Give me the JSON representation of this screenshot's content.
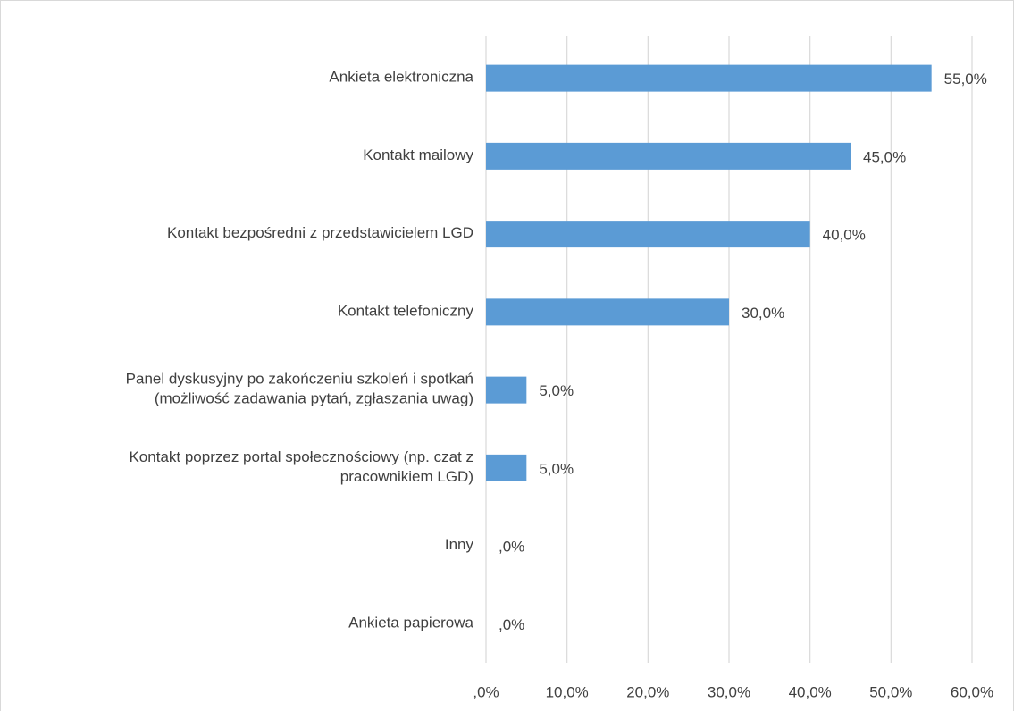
{
  "chart_data": {
    "type": "bar",
    "orientation": "horizontal",
    "categories": [
      "Ankieta elektroniczna",
      "Kontakt mailowy",
      "Kontakt bezpośredni z przedstawicielem LGD",
      "Kontakt telefoniczny",
      "Panel dyskusyjny po zakończeniu szkoleń i spotkań\n(możliwość zadawania pytań, zgłaszania uwag)",
      "Kontakt poprzez portal społecznościowy (np. czat z\npracownikiem LGD)",
      "Inny",
      "Ankieta papierowa"
    ],
    "values": [
      55,
      45,
      40,
      30,
      5,
      5,
      0,
      0
    ],
    "value_labels": [
      "55,0%",
      "45,0%",
      "40,0%",
      "30,0%",
      "5,0%",
      "5,0%",
      ",0%",
      ",0%"
    ],
    "color": "#5b9bd5",
    "xlim": [
      0,
      60
    ],
    "xticks": [
      {
        "value": 0,
        "label": ",0%"
      },
      {
        "value": 10,
        "label": "10,0%"
      },
      {
        "value": 20,
        "label": "20,0%"
      },
      {
        "value": 30,
        "label": "30,0%"
      },
      {
        "value": 40,
        "label": "40,0%"
      },
      {
        "value": 50,
        "label": "50,0%"
      },
      {
        "value": 60,
        "label": "60,0%"
      }
    ],
    "grid": true
  }
}
